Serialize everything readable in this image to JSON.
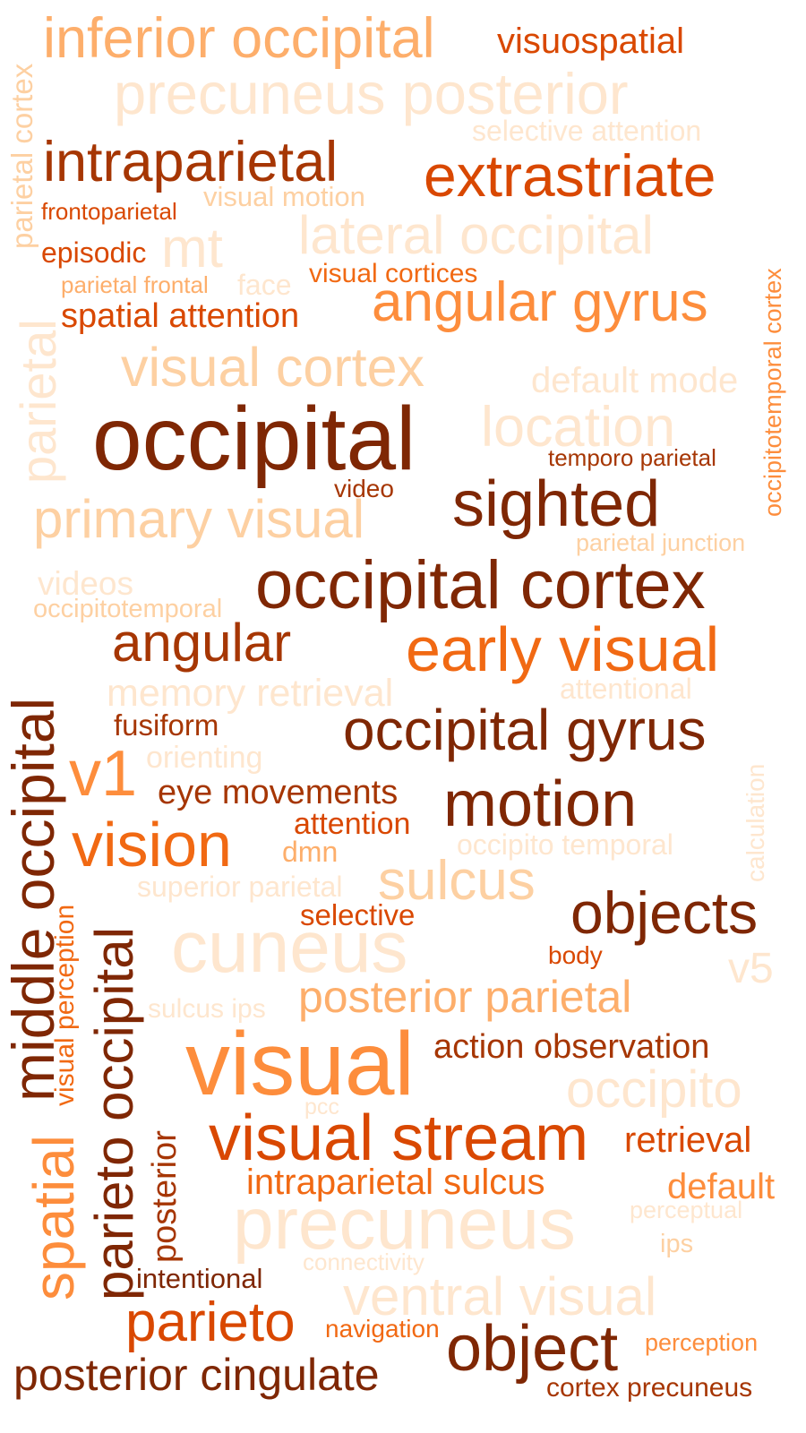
{
  "colors": {
    "c1": "#7f2704",
    "c2": "#a63603",
    "c3": "#d94801",
    "c4": "#f16913",
    "c5": "#fd8d3c",
    "c6": "#fdae6b",
    "c7": "#fdd0a2",
    "c8": "#fee6ce"
  },
  "words": [
    {
      "text": "inferior occipital",
      "color": "c6"
    },
    {
      "text": "visuospatial",
      "color": "c3"
    },
    {
      "text": "precuneus posterior",
      "color": "c8"
    },
    {
      "text": "selective attention",
      "color": "c8"
    },
    {
      "text": "intraparietal",
      "color": "c2"
    },
    {
      "text": "extrastriate",
      "color": "c3"
    },
    {
      "text": "visual motion",
      "color": "c7"
    },
    {
      "text": "frontoparietal",
      "color": "c3"
    },
    {
      "text": "lateral occipital",
      "color": "c8"
    },
    {
      "text": "episodic",
      "color": "c3"
    },
    {
      "text": "mt",
      "color": "c8"
    },
    {
      "text": "visual cortices",
      "color": "c4"
    },
    {
      "text": "parietal frontal",
      "color": "c6"
    },
    {
      "text": "face",
      "color": "c8"
    },
    {
      "text": "angular gyrus",
      "color": "c5"
    },
    {
      "text": "spatial attention",
      "color": "c3"
    },
    {
      "text": "visual cortex",
      "color": "c7"
    },
    {
      "text": "default mode",
      "color": "c8"
    },
    {
      "text": "occipital",
      "color": "c1"
    },
    {
      "text": "location",
      "color": "c8"
    },
    {
      "text": "temporo parietal",
      "color": "c2"
    },
    {
      "text": "video",
      "color": "c2"
    },
    {
      "text": "sighted",
      "color": "c1"
    },
    {
      "text": "primary visual",
      "color": "c7"
    },
    {
      "text": "parietal junction",
      "color": "c7"
    },
    {
      "text": "videos",
      "color": "c8"
    },
    {
      "text": "occipital cortex",
      "color": "c1"
    },
    {
      "text": "occipitotemporal",
      "color": "c7"
    },
    {
      "text": "angular",
      "color": "c2"
    },
    {
      "text": "early visual",
      "color": "c4"
    },
    {
      "text": "memory retrieval",
      "color": "c8"
    },
    {
      "text": "attentional",
      "color": "c8"
    },
    {
      "text": "fusiform",
      "color": "c2"
    },
    {
      "text": "occipital gyrus",
      "color": "c1"
    },
    {
      "text": "orienting",
      "color": "c8"
    },
    {
      "text": "v1",
      "color": "c5"
    },
    {
      "text": "eye movements",
      "color": "c2"
    },
    {
      "text": "motion",
      "color": "c1"
    },
    {
      "text": "attention",
      "color": "c3"
    },
    {
      "text": "vision",
      "color": "c4"
    },
    {
      "text": "dmn",
      "color": "c6"
    },
    {
      "text": "occipito temporal",
      "color": "c8"
    },
    {
      "text": "superior parietal",
      "color": "c8"
    },
    {
      "text": "sulcus",
      "color": "c7"
    },
    {
      "text": "selective",
      "color": "c3"
    },
    {
      "text": "objects",
      "color": "c1"
    },
    {
      "text": "cuneus",
      "color": "c8"
    },
    {
      "text": "body",
      "color": "c3"
    },
    {
      "text": "v5",
      "color": "c8"
    },
    {
      "text": "sulcus ips",
      "color": "c8"
    },
    {
      "text": "posterior parietal",
      "color": "c6"
    },
    {
      "text": "action observation",
      "color": "c2"
    },
    {
      "text": "visual",
      "color": "c5"
    },
    {
      "text": "occipito",
      "color": "c8"
    },
    {
      "text": "pcc",
      "color": "c8"
    },
    {
      "text": "visual stream",
      "color": "c3"
    },
    {
      "text": "retrieval",
      "color": "c3"
    },
    {
      "text": "intraparietal sulcus",
      "color": "c4"
    },
    {
      "text": "default",
      "color": "c5"
    },
    {
      "text": "precuneus",
      "color": "c8"
    },
    {
      "text": "perceptual",
      "color": "c8"
    },
    {
      "text": "ips",
      "color": "c7"
    },
    {
      "text": "intentional",
      "color": "c1"
    },
    {
      "text": "connectivity",
      "color": "c8"
    },
    {
      "text": "ventral visual",
      "color": "c8"
    },
    {
      "text": "parieto",
      "color": "c3"
    },
    {
      "text": "navigation",
      "color": "c4"
    },
    {
      "text": "object",
      "color": "c1"
    },
    {
      "text": "perception",
      "color": "c5"
    },
    {
      "text": "posterior cingulate",
      "color": "c1"
    },
    {
      "text": "cortex precuneus",
      "color": "c2"
    },
    {
      "text": "parietal cortex",
      "color": "c7"
    },
    {
      "text": "parietal",
      "color": "c8"
    },
    {
      "text": "occipitotemporal cortex",
      "color": "c5"
    },
    {
      "text": "middle occipital",
      "color": "c1"
    },
    {
      "text": "visual perception",
      "color": "c4"
    },
    {
      "text": "parieto occipital",
      "color": "c1"
    },
    {
      "text": "spatial",
      "color": "c5"
    },
    {
      "text": "posterior",
      "color": "c2"
    },
    {
      "text": "calculation",
      "color": "c8"
    }
  ]
}
